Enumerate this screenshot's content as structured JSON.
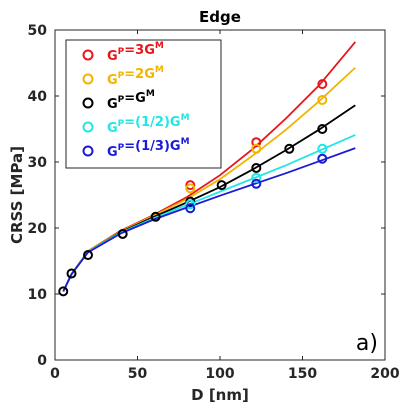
{
  "chart_data": {
    "type": "scatter",
    "title": "Edge",
    "xlabel": "D [nm]",
    "ylabel": "CRSS [MPa]",
    "xlim": [
      0,
      200
    ],
    "ylim": [
      0,
      50
    ],
    "xticks": [
      0,
      50,
      100,
      150,
      200
    ],
    "yticks": [
      0,
      10,
      20,
      30,
      40,
      50
    ],
    "annotation": "a)",
    "legend_position": "top-left",
    "series": [
      {
        "name": "G^P=3G^M",
        "color": "#e8161b",
        "markers": [
          [
            82,
            26.5
          ],
          [
            122,
            33.0
          ],
          [
            162,
            41.8
          ]
        ],
        "curve": [
          [
            5,
            10.4
          ],
          [
            10,
            13.0
          ],
          [
            20,
            16.5
          ],
          [
            40,
            19.6
          ],
          [
            60,
            22.0
          ],
          [
            80,
            24.7
          ],
          [
            100,
            28.0
          ],
          [
            120,
            32.0
          ],
          [
            140,
            36.6
          ],
          [
            160,
            41.6
          ],
          [
            182,
            48.2
          ]
        ]
      },
      {
        "name": "G^P=2G^M",
        "color": "#f2b400",
        "markers": [
          [
            82,
            26.0
          ],
          [
            122,
            32.0
          ],
          [
            162,
            39.4
          ]
        ],
        "curve": [
          [
            5,
            10.4
          ],
          [
            10,
            13.0
          ],
          [
            20,
            16.5
          ],
          [
            40,
            19.5
          ],
          [
            60,
            21.9
          ],
          [
            80,
            24.4
          ],
          [
            100,
            27.4
          ],
          [
            120,
            31.0
          ],
          [
            140,
            34.9
          ],
          [
            160,
            39.2
          ],
          [
            182,
            44.3
          ]
        ]
      },
      {
        "name": "G^P=G^M",
        "color": "#000000",
        "markers": [
          [
            5,
            10.4
          ],
          [
            10,
            13.1
          ],
          [
            20,
            15.9
          ],
          [
            41,
            19.1
          ],
          [
            61,
            21.7
          ],
          [
            82,
            24.0
          ],
          [
            101,
            26.5
          ],
          [
            122,
            29.1
          ],
          [
            142,
            32.0
          ],
          [
            162,
            35.0
          ]
        ],
        "curve": [
          [
            5,
            10.4
          ],
          [
            10,
            13.0
          ],
          [
            20,
            16.4
          ],
          [
            40,
            19.4
          ],
          [
            60,
            21.7
          ],
          [
            80,
            23.9
          ],
          [
            100,
            26.2
          ],
          [
            120,
            28.9
          ],
          [
            140,
            31.8
          ],
          [
            160,
            34.9
          ],
          [
            182,
            38.6
          ]
        ]
      },
      {
        "name": "G^P=(1/2)G^M",
        "color": "#22e6e6",
        "markers": [
          [
            82,
            23.6
          ],
          [
            122,
            27.6
          ],
          [
            162,
            32.0
          ]
        ],
        "curve": [
          [
            5,
            10.4
          ],
          [
            10,
            13.0
          ],
          [
            20,
            16.4
          ],
          [
            40,
            19.3
          ],
          [
            60,
            21.5
          ],
          [
            80,
            23.5
          ],
          [
            100,
            25.5
          ],
          [
            120,
            27.5
          ],
          [
            140,
            29.5
          ],
          [
            160,
            31.7
          ],
          [
            182,
            34.1
          ]
        ]
      },
      {
        "name": "G^P=(1/3)G^M",
        "color": "#1b1bd6",
        "markers": [
          [
            82,
            23.0
          ],
          [
            122,
            26.7
          ],
          [
            162,
            30.5
          ]
        ],
        "curve": [
          [
            5,
            10.4
          ],
          [
            10,
            13.0
          ],
          [
            20,
            16.3
          ],
          [
            40,
            19.2
          ],
          [
            60,
            21.3
          ],
          [
            80,
            23.1
          ],
          [
            100,
            24.9
          ],
          [
            120,
            26.6
          ],
          [
            140,
            28.3
          ],
          [
            160,
            30.1
          ],
          [
            182,
            32.1
          ]
        ]
      }
    ]
  }
}
